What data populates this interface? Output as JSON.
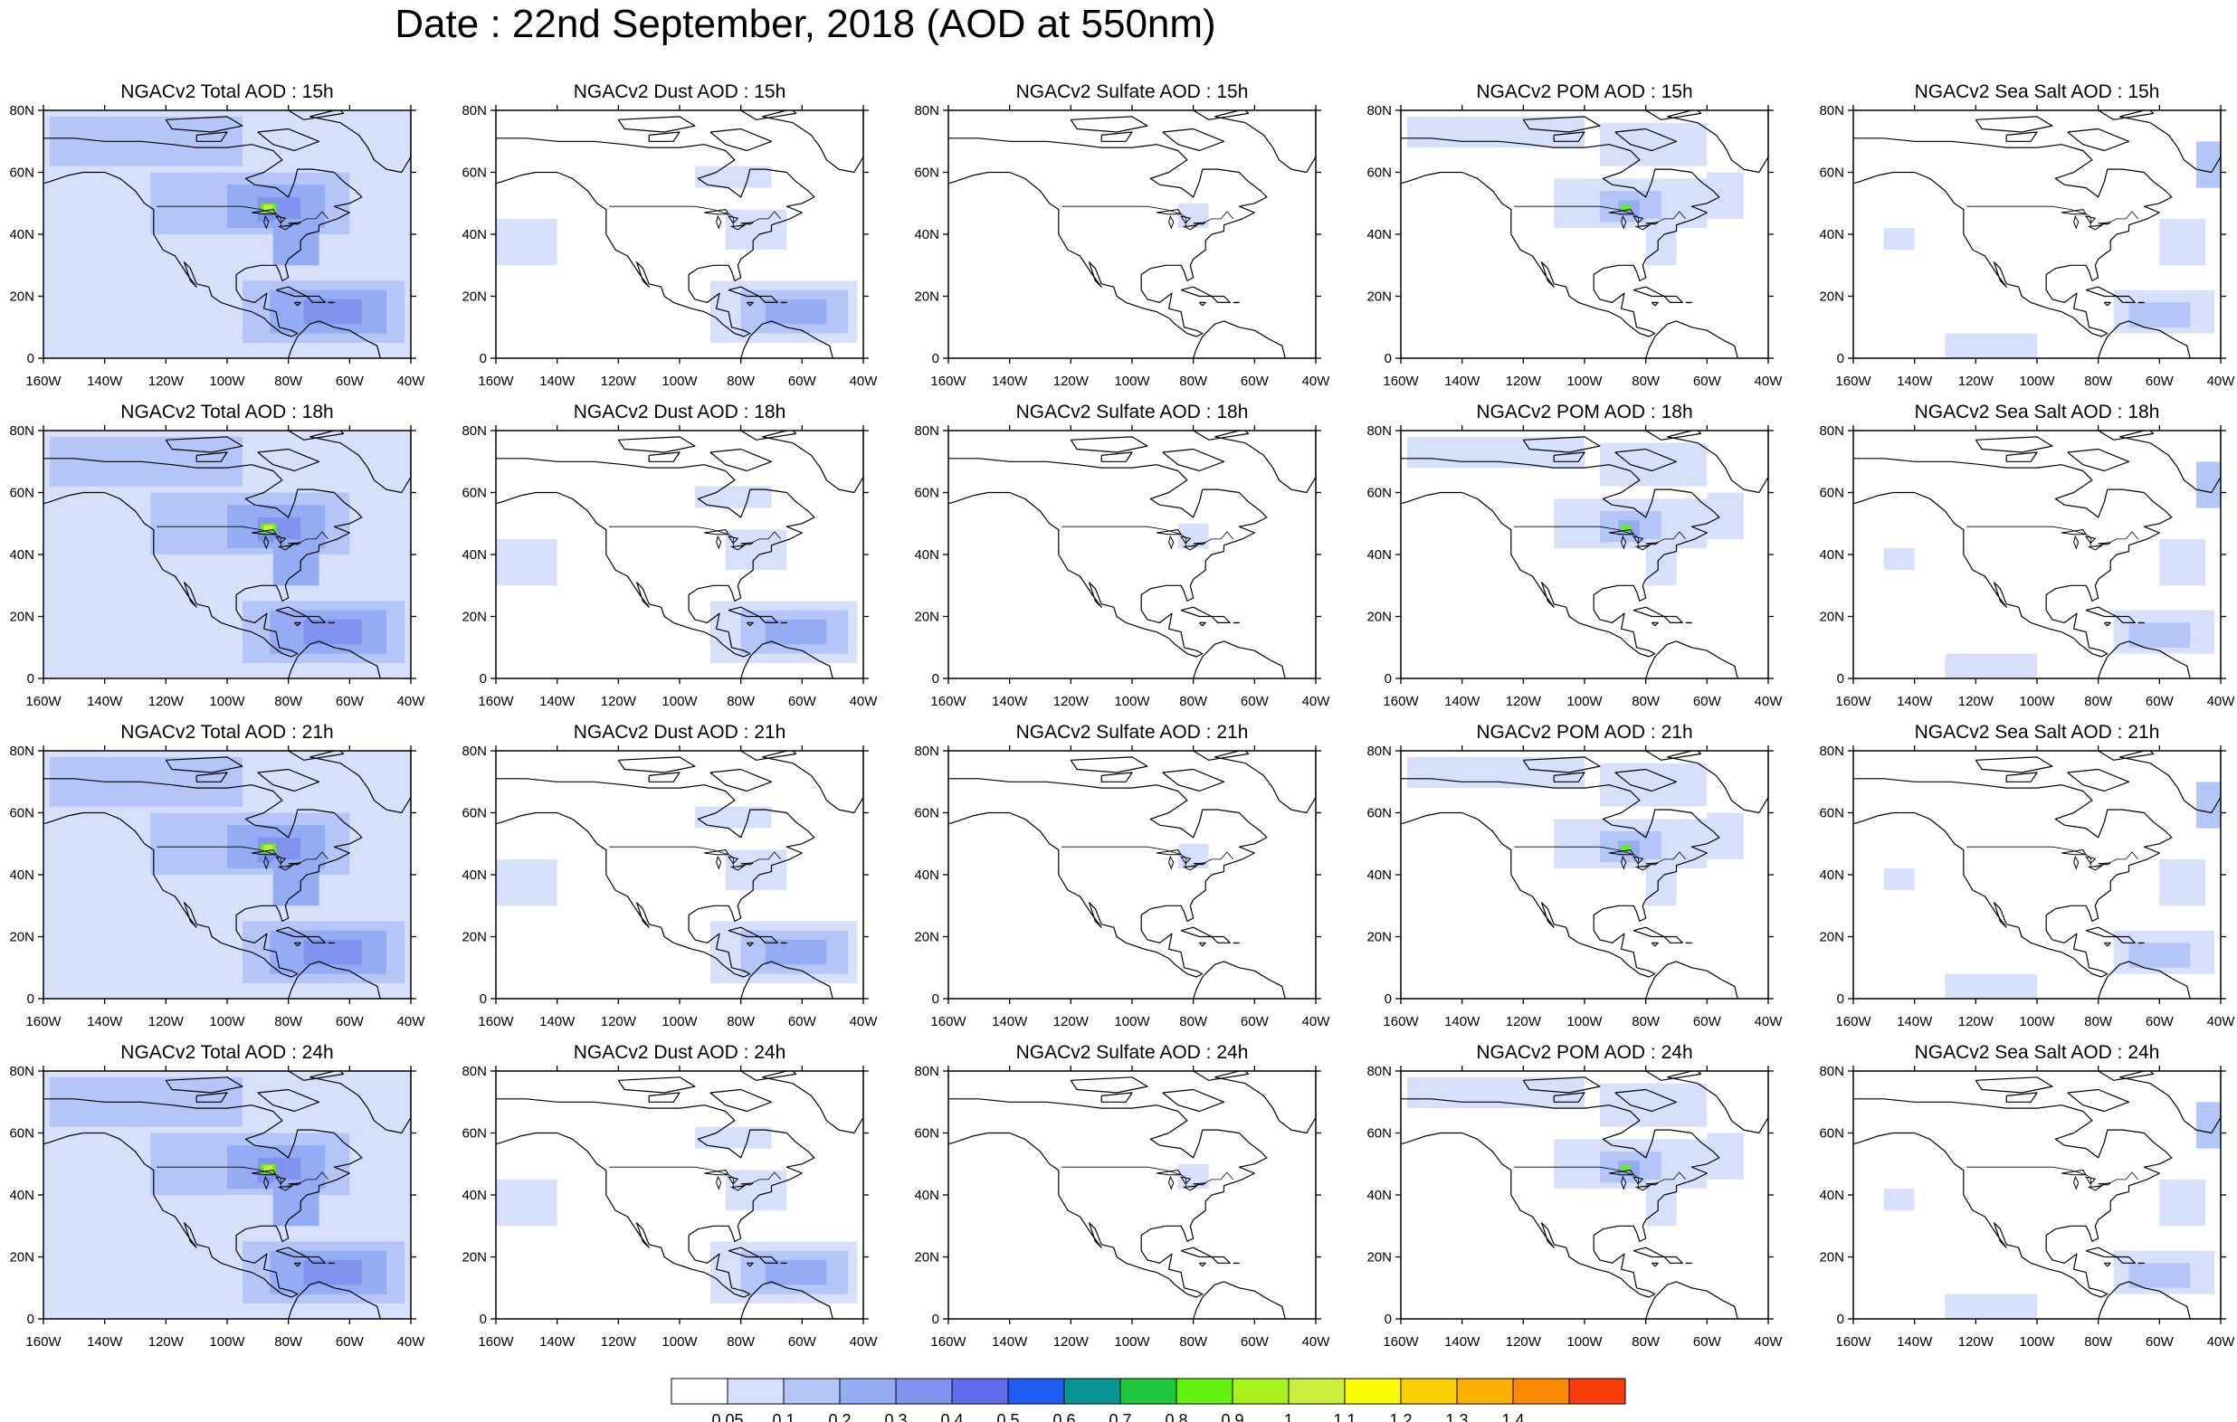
{
  "title": "Date : 22nd September, 2018 (AOD at 550nm)",
  "species": [
    "Total",
    "Dust",
    "Sulfate",
    "POM",
    "Sea Salt"
  ],
  "hours": [
    "15h",
    "18h",
    "21h",
    "24h"
  ],
  "panel_titles": [
    [
      "NGACv2 Total AOD : 15h",
      "NGACv2 Dust AOD : 15h",
      "NGACv2 Sulfate AOD : 15h",
      "NGACv2 POM AOD : 15h",
      "NGACv2 Sea Salt AOD : 15h"
    ],
    [
      "NGACv2 Total AOD : 18h",
      "NGACv2 Dust AOD : 18h",
      "NGACv2 Sulfate AOD : 18h",
      "NGACv2 POM AOD : 18h",
      "NGACv2 Sea Salt AOD : 18h"
    ],
    [
      "NGACv2 Total AOD : 21h",
      "NGACv2 Dust AOD : 21h",
      "NGACv2 Sulfate AOD : 21h",
      "NGACv2 POM AOD : 21h",
      "NGACv2 Sea Salt AOD : 21h"
    ],
    [
      "NGACv2 Total AOD : 24h",
      "NGACv2 Dust AOD : 24h",
      "NGACv2 Sulfate AOD : 24h",
      "NGACv2 POM AOD : 24h",
      "NGACv2 Sea Salt  AOD : 24h"
    ]
  ],
  "lat_ticks": [
    "0",
    "20N",
    "40N",
    "60N",
    "80N"
  ],
  "lat_values": [
    0,
    20,
    40,
    60,
    80
  ],
  "lon_ticks": [
    "160W",
    "140W",
    "120W",
    "100W",
    "80W",
    "60W",
    "40W"
  ],
  "lon_values": [
    -160,
    -140,
    -120,
    -100,
    -80,
    -60,
    -40
  ],
  "map_extent": {
    "lon": [
      -160,
      -40
    ],
    "lat": [
      0,
      80
    ]
  },
  "colorbar": {
    "levels": [
      "0.05",
      "0.1",
      "0.2",
      "0.3",
      "0.4",
      "0.5",
      "0.6",
      "0.7",
      "0.8",
      "0.9",
      "1",
      "1.1",
      "1.2",
      "1.3",
      "1.4"
    ],
    "colors": [
      "#ffffff",
      "#d6e0fb",
      "#b3c6f7",
      "#93acf3",
      "#7f93ef",
      "#5f6ded",
      "#1f5ef2",
      "#0b9494",
      "#1ec73c",
      "#62f20e",
      "#a7f21b",
      "#cbef3c",
      "#fbfc00",
      "#fbd000",
      "#fbb000",
      "#fb8a00",
      "#fa3c0b"
    ]
  },
  "color_key": {
    "shade_light": "#d6e0fb",
    "shade_mid": "#b3c6f7",
    "shade_strong": "#93acf3",
    "shade_deep": "#7f93ef",
    "hotspot_green": "#62f20e",
    "hotspot_yellow": "#cbef3c"
  }
}
